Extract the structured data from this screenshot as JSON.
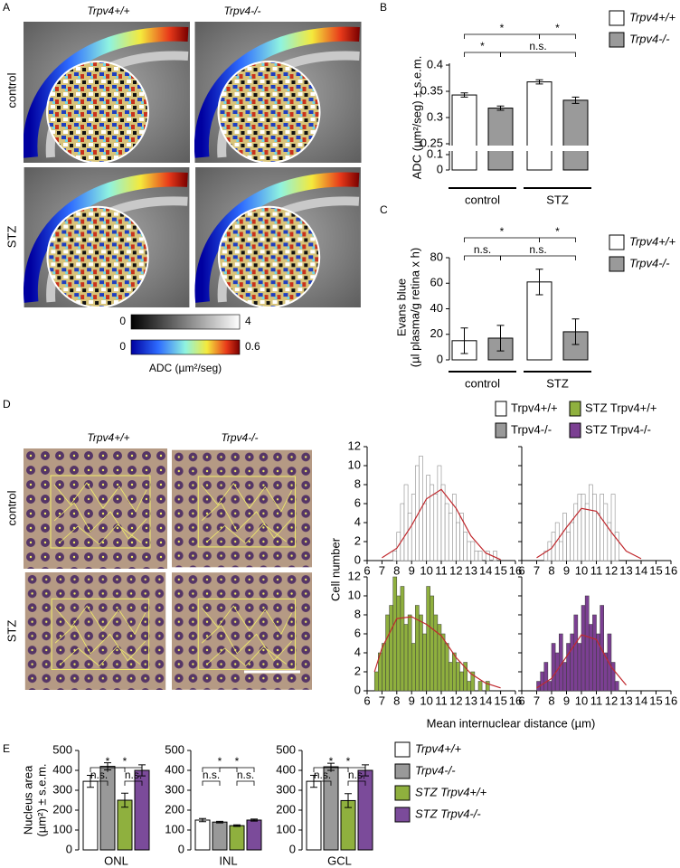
{
  "panels": [
    "A",
    "B",
    "C",
    "D",
    "E"
  ],
  "panel_a": {
    "columns": [
      "Trpv4+/+",
      "Trpv4-/-"
    ],
    "rows": [
      "control",
      "STZ"
    ],
    "colorbars": [
      {
        "ticks": [
          0,
          4
        ]
      },
      {
        "ticks": [
          0,
          0.6
        ]
      }
    ],
    "colorbar_label": "ADC (µm²/seg)"
  },
  "panel_d": {
    "columns": [
      "Trpv4+/+",
      "Trpv4-/-"
    ],
    "rows": [
      "control",
      "STZ"
    ]
  },
  "chart_data": [
    {
      "type": "bar",
      "ylabel": [
        "ADC (µm²/seg) ± s.e.m."
      ],
      "categories": [
        "control",
        "STZ"
      ],
      "ylim": [
        0,
        0.4
      ],
      "axis_break": [
        0.1,
        0.25
      ],
      "yticks": [
        0,
        0.1,
        0.25,
        0.3,
        0.35,
        0.4
      ],
      "series": [
        {
          "name": "Trpv4+/+",
          "color": "#ffffff",
          "values": [
            0.343,
            0.368
          ],
          "errors": [
            0.004,
            0.004
          ]
        },
        {
          "name": "Trpv4-/-",
          "color": "#9a9a9a",
          "values": [
            0.318,
            0.333
          ],
          "errors": [
            0.004,
            0.006
          ]
        }
      ],
      "brackets": [
        {
          "label": "*",
          "between": [
            0,
            2
          ]
        },
        {
          "label": "*",
          "between": [
            2,
            3
          ]
        },
        {
          "label": "*",
          "between": [
            0,
            1
          ]
        },
        {
          "label": "n.s.",
          "between": [
            1,
            3
          ]
        }
      ]
    },
    {
      "type": "bar",
      "ylabel": [
        "Evans blue",
        "(µl plasma/g retina x h)"
      ],
      "categories": [
        "control",
        "STZ"
      ],
      "ylim": [
        0,
        80
      ],
      "yticks": [
        0,
        20,
        40,
        60,
        80
      ],
      "series": [
        {
          "name": "Trpv4+/+",
          "color": "#ffffff",
          "values": [
            15,
            61
          ],
          "errors": [
            10,
            10
          ]
        },
        {
          "name": "Trpv4-/-",
          "color": "#9a9a9a",
          "values": [
            17,
            22
          ],
          "errors": [
            10,
            10
          ]
        }
      ],
      "brackets": [
        {
          "label": "*",
          "between": [
            0,
            2
          ]
        },
        {
          "label": "*",
          "between": [
            2,
            3
          ]
        },
        {
          "label": "n.s.",
          "between": [
            0,
            1
          ]
        },
        {
          "label": "n.s.",
          "between": [
            1,
            3
          ]
        }
      ]
    },
    {
      "type": "histogram",
      "xlabel": "Mean internuclear distance (µm)",
      "ylabel": "Cell number",
      "bins": [
        6,
        6.25,
        6.5,
        6.75,
        7,
        7.25,
        7.5,
        7.75,
        8,
        8.25,
        8.5,
        8.75,
        9,
        9.25,
        9.5,
        9.75,
        10,
        10.25,
        10.5,
        10.75,
        11,
        11.25,
        11.5,
        11.75,
        12,
        12.25,
        12.5,
        12.75,
        13,
        13.25,
        13.5,
        13.75,
        14,
        14.25,
        14.5,
        14.75,
        15,
        15.25,
        15.5,
        15.75,
        16
      ],
      "xlim": [
        6,
        16
      ],
      "xticks": [
        6,
        7,
        8,
        9,
        10,
        11,
        12,
        13,
        14,
        15,
        16
      ],
      "ylim": [
        0,
        12
      ],
      "yticks": [
        0,
        2,
        4,
        6,
        8,
        10,
        12
      ],
      "fit_color": "#c0282d",
      "series": [
        {
          "name": "Trpv4+/+",
          "color": "#ffffff",
          "values": [
            0,
            0,
            0,
            0,
            0,
            0,
            0,
            1,
            3,
            6,
            8,
            5,
            7,
            10,
            11,
            6,
            9,
            8,
            7,
            10,
            8,
            6,
            5,
            7,
            4,
            5,
            3,
            2,
            2,
            1,
            1,
            0,
            1,
            0,
            1,
            0,
            0,
            0,
            0,
            0
          ],
          "fit": {
            "x": [
              7,
              8,
              9,
              10,
              11,
              12,
              13,
              14,
              15
            ],
            "y": [
              0.3,
              1.3,
              3.7,
              6.5,
              7.5,
              5.5,
              2.6,
              0.8,
              0.1
            ]
          }
        },
        {
          "name": "Trpv4-/-",
          "color": "#ffffff",
          "values": [
            0,
            0,
            0,
            0,
            0,
            0,
            1,
            2,
            3,
            4,
            2,
            5,
            3,
            4,
            6,
            7,
            7,
            6,
            8,
            7,
            5,
            7,
            6,
            4,
            7,
            3,
            0,
            0,
            0,
            0,
            0,
            0,
            0,
            0,
            0,
            0,
            0,
            0,
            0,
            0
          ],
          "fit": {
            "x": [
              7,
              8,
              9,
              10,
              11,
              12,
              13,
              14
            ],
            "y": [
              0.3,
              1.3,
              3.5,
              5.5,
              5.2,
              3,
              1,
              0.2
            ]
          }
        },
        {
          "name": "STZ Trpv4+/+",
          "color": "#8fb03e",
          "values": [
            0,
            0,
            2,
            4,
            5,
            8,
            9,
            12,
            10,
            11,
            7,
            8,
            5,
            9,
            8,
            6,
            11,
            10,
            8,
            7,
            6,
            5,
            3,
            4,
            3,
            2,
            3,
            1,
            2,
            0,
            1,
            0,
            1,
            0,
            0,
            0,
            0,
            0,
            0,
            0
          ],
          "fit": {
            "x": [
              6.5,
              7,
              8,
              9,
              10,
              11,
              12,
              13,
              14,
              15
            ],
            "y": [
              2,
              4.5,
              7.6,
              7.8,
              7,
              5.8,
              3.5,
              1.8,
              0.8,
              0.3
            ]
          }
        },
        {
          "name": "STZ Trpv4-/-",
          "color": "#7b3f92",
          "values": [
            0,
            0,
            0,
            0,
            1,
            2,
            3,
            1,
            5,
            4,
            6,
            3,
            5,
            6,
            8,
            5,
            9,
            10,
            7,
            8,
            6,
            9,
            4,
            6,
            3,
            1,
            0,
            0,
            0,
            0,
            0,
            0,
            0,
            0,
            0,
            0,
            0,
            0,
            0,
            0
          ],
          "fit": {
            "x": [
              7,
              8,
              9,
              10,
              11,
              12,
              13
            ],
            "y": [
              0.3,
              1.3,
              3.6,
              5.9,
              5.4,
              2.5,
              0.6
            ]
          }
        }
      ]
    },
    {
      "type": "bar",
      "ylabel": [
        "Nucleus area",
        "(µm²) ± s.e.m."
      ],
      "categories": [
        "ONL",
        "INL",
        "GCL"
      ],
      "ylim": [
        0,
        500
      ],
      "yticks": [
        0,
        100,
        200,
        300,
        400,
        500
      ],
      "series": [
        {
          "name": "Trpv4+/+",
          "color": "#ffffff",
          "values": [
            345,
            150,
            345
          ],
          "errors": [
            30,
            8,
            30
          ]
        },
        {
          "name": "Trpv4-/-",
          "color": "#999999",
          "values": [
            420,
            140,
            418
          ],
          "errors": [
            18,
            4,
            18
          ]
        },
        {
          "name": "STZ Trpv4+/+",
          "color": "#8fb03e",
          "values": [
            250,
            122,
            248
          ],
          "errors": [
            35,
            4,
            35
          ]
        },
        {
          "name": "STZ Trpv4-/-",
          "color": "#7b4b9a",
          "values": [
            400,
            150,
            400
          ],
          "errors": [
            28,
            5,
            28
          ]
        }
      ],
      "brackets": [
        {
          "label": "*",
          "between": [
            0,
            2
          ]
        },
        {
          "label": "*",
          "between": [
            1,
            3
          ]
        },
        {
          "label": "n.s.",
          "between": [
            0,
            1
          ]
        },
        {
          "label": "n.s.",
          "between": [
            2,
            3
          ]
        }
      ]
    }
  ]
}
